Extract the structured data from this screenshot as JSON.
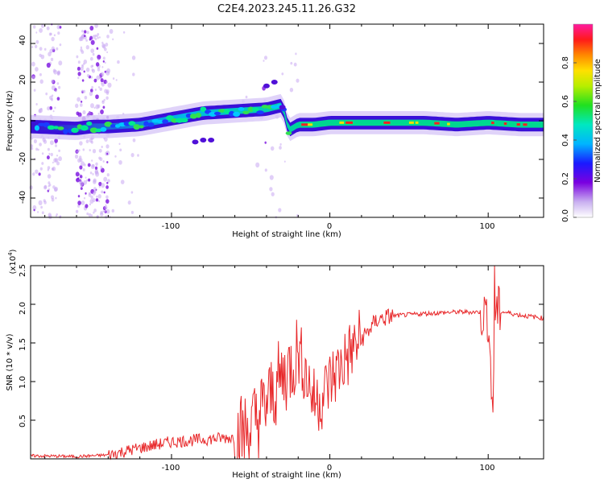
{
  "title": "C2E4.2023.245.11.26.G32",
  "top_chart": {
    "ylabel": "Frequency (Hz)",
    "xlabel": "Height of straight line (km)",
    "colorbar_label": "Normalized spectral amplitude",
    "xticks": [
      "-100",
      "0",
      "100"
    ],
    "yticks": [
      "40",
      "20",
      "0",
      "-20",
      "-40"
    ],
    "cticks": [
      "0.8",
      "0.6",
      "0.4",
      "0.2",
      "0.0"
    ]
  },
  "bottom_chart": {
    "ylabel": "SNR (10 * v/v)",
    "multiplier_base": "(x10",
    "multiplier_exp": "4",
    "multiplier_close": ")",
    "xlabel": "Height of straight line (km)",
    "xticks": [
      "-100",
      "0",
      "100"
    ],
    "yticks": [
      "2.5",
      "2.0",
      "1.5",
      "1.0",
      "0.5"
    ]
  },
  "colors": {
    "snr_line": "#e8282a",
    "spectrogram_low": "#6a00d8",
    "spectrogram_high": "#e8282a"
  },
  "chart_data": [
    {
      "type": "heatmap",
      "title": "C2E4.2023.245.11.26.G32",
      "xlabel": "Height of straight line (km)",
      "ylabel": "Frequency (Hz)",
      "xlim": [
        -189,
        135
      ],
      "ylim": [
        -50,
        50
      ],
      "colorbar": {
        "label": "Normalized spectral amplitude",
        "range": [
          0,
          1
        ]
      },
      "ridge": {
        "x": [
          -189,
          -160,
          -150,
          -140,
          -120,
          -100,
          -80,
          -60,
          -40,
          -30,
          -26,
          -22,
          -20,
          -10,
          0,
          10,
          20,
          40,
          60,
          80,
          100,
          120,
          135
        ],
        "y": [
          -3,
          -4,
          -3,
          -3,
          -2,
          1,
          4,
          5,
          6,
          8,
          -5,
          -3,
          -2,
          -2,
          -1,
          -1,
          -1,
          -1,
          -1,
          -2,
          -1,
          -2,
          -2
        ]
      }
    },
    {
      "type": "line",
      "xlabel": "Height of straight line (km)",
      "ylabel": "SNR (10 * v/v)",
      "xlim": [
        -189,
        135
      ],
      "ylim": [
        0,
        2.5
      ],
      "y_multiplier": "x10^4",
      "series": [
        {
          "x": [
            -189,
            -160,
            -140,
            -120,
            -100,
            -80,
            -60,
            -50,
            -40,
            -35,
            -30,
            -25,
            -20,
            -15,
            -10,
            -5,
            0,
            10,
            20,
            30,
            40,
            60,
            80,
            95,
            100,
            103,
            104,
            110,
            120,
            135
          ],
          "values": [
            0.04,
            0.03,
            0.05,
            0.14,
            0.22,
            0.25,
            0.28,
            0.4,
            0.7,
            0.9,
            1.05,
            1.2,
            1.4,
            1.1,
            0.75,
            0.8,
            1.0,
            1.3,
            1.55,
            1.8,
            1.85,
            1.88,
            1.9,
            1.9,
            1.85,
            0.6,
            1.9,
            1.9,
            1.86,
            1.82
          ]
        }
      ]
    }
  ]
}
